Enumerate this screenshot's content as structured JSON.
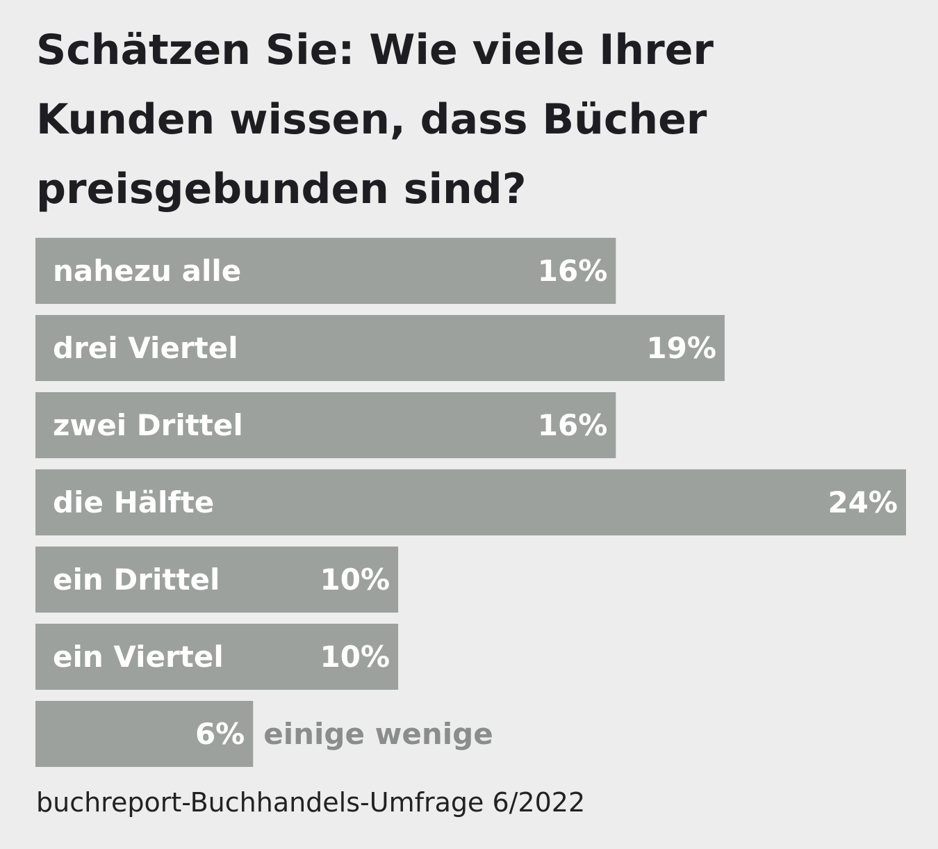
{
  "chart_data": {
    "type": "bar",
    "orientation": "horizontal",
    "title": "Schätzen Sie: Wie viele Ihrer Kunden wissen, dass Bücher preisgebunden sind?",
    "categories": [
      "nahezu alle",
      "drei Viertel",
      "zwei Drittel",
      "die Hälfte",
      "ein Drittel",
      "ein Viertel",
      "einige wenige"
    ],
    "values": [
      16,
      19,
      16,
      24,
      10,
      10,
      6
    ],
    "value_labels": [
      "16%",
      "19%",
      "16%",
      "24%",
      "10%",
      "10%",
      "6%"
    ],
    "color": "#9ca19e",
    "source": "buchreport-Buchhandels-Umfrage 6/2022"
  }
}
